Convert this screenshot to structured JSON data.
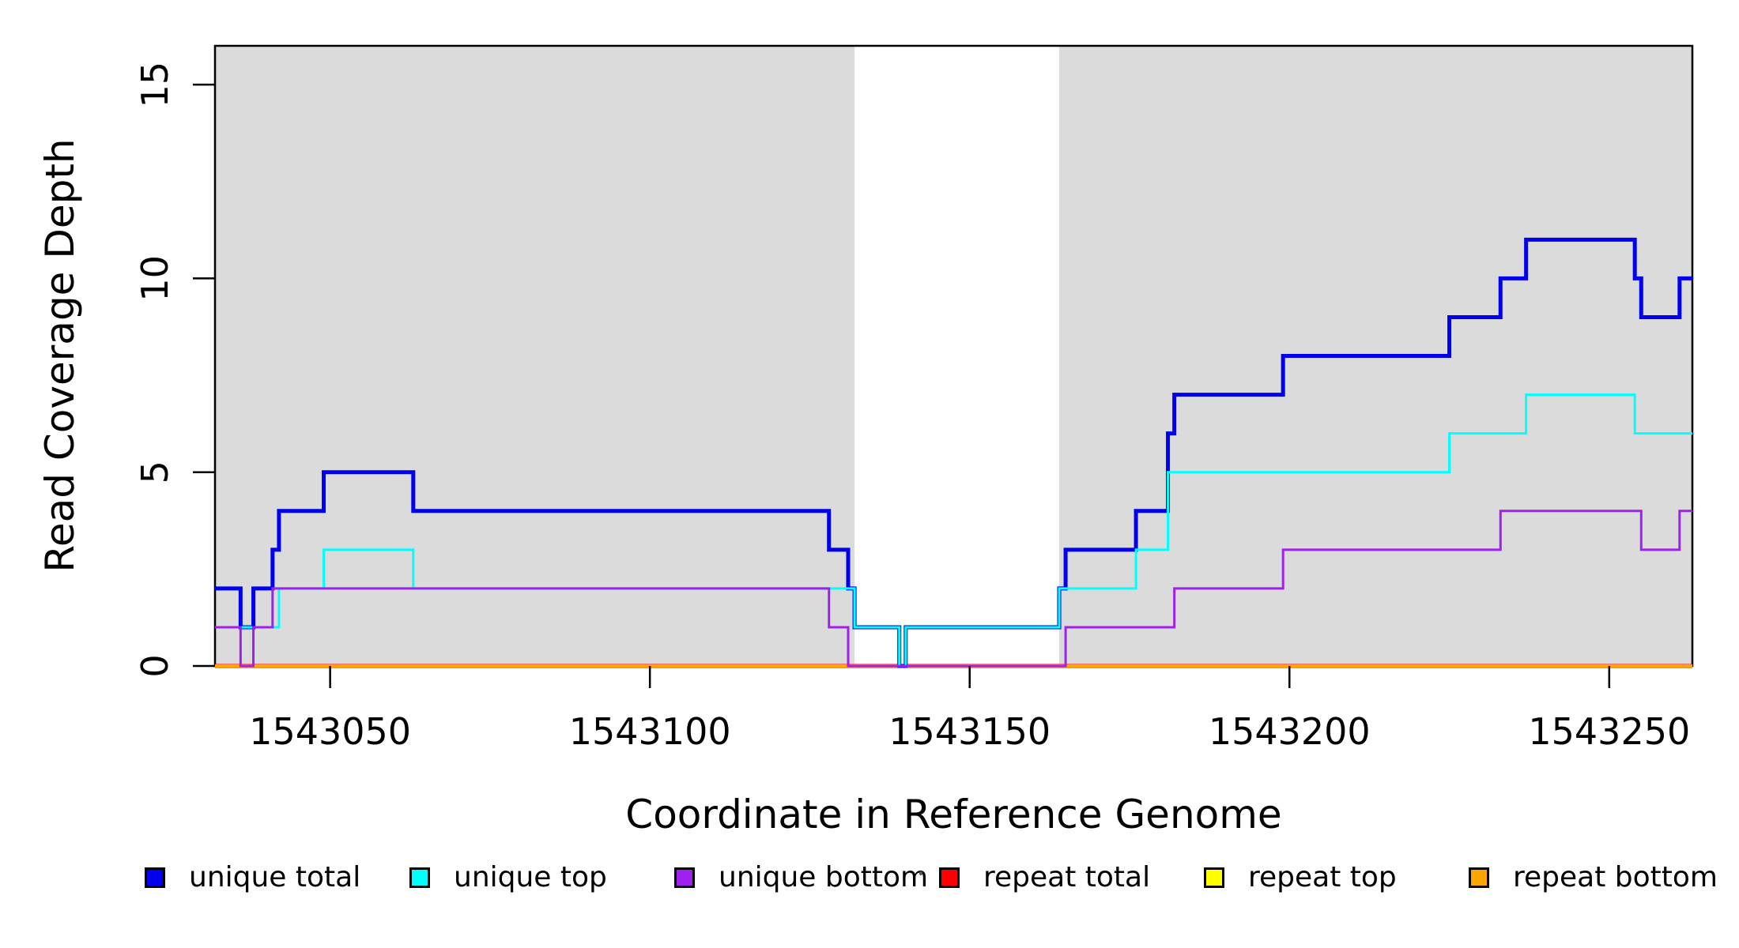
{
  "figure": {
    "background": "#FFFFFF"
  },
  "chart_data": {
    "type": "step-line",
    "title": "",
    "xlabel": "Coordinate in Reference Genome",
    "ylabel": "Read Coverage Depth",
    "xlim": [
      1543032,
      1543263
    ],
    "ylim": [
      0,
      16
    ],
    "xticks": [
      1543050,
      1543100,
      1543150,
      1543200,
      1543250
    ],
    "yticks": [
      0,
      5,
      10,
      15
    ],
    "grid": "off",
    "shade_color": "#DBDBDB",
    "shaded_regions": [
      {
        "x0": 1543032,
        "x1": 1543132
      },
      {
        "x0": 1543164,
        "x1": 1543263
      }
    ],
    "series": [
      {
        "name": "repeat total",
        "color": "#FF0000",
        "width": 5,
        "end": 1543263,
        "steps": [
          [
            1543032,
            0
          ]
        ]
      },
      {
        "name": "repeat top",
        "color": "#FFFF00",
        "width": 3,
        "end": 1543263,
        "steps": [
          [
            1543032,
            0
          ]
        ]
      },
      {
        "name": "repeat bottom",
        "color": "#FFA500",
        "width": 4,
        "end": 1543263,
        "steps": [
          [
            1543032,
            0
          ]
        ]
      },
      {
        "name": "unique total",
        "color": "#0000EE",
        "width": 5,
        "end": 1543263,
        "steps": [
          [
            1543032,
            2
          ],
          [
            1543036,
            1
          ],
          [
            1543038,
            2
          ],
          [
            1543041,
            3
          ],
          [
            1543042,
            4
          ],
          [
            1543049,
            5
          ],
          [
            1543063,
            4
          ],
          [
            1543128,
            3
          ],
          [
            1543131,
            2
          ],
          [
            1543132,
            1
          ],
          [
            1543139,
            0
          ],
          [
            1543140,
            1
          ],
          [
            1543164,
            2
          ],
          [
            1543165,
            3
          ],
          [
            1543176,
            4
          ],
          [
            1543181,
            6
          ],
          [
            1543182,
            7
          ],
          [
            1543199,
            8
          ],
          [
            1543225,
            9
          ],
          [
            1543233,
            10
          ],
          [
            1543237,
            11
          ],
          [
            1543254,
            10
          ],
          [
            1543255,
            9
          ],
          [
            1543261,
            10
          ]
        ]
      },
      {
        "name": "unique top",
        "color": "#00FFFF",
        "width": 3,
        "end": 1543263,
        "steps": [
          [
            1543032,
            1
          ],
          [
            1543042,
            2
          ],
          [
            1543049,
            3
          ],
          [
            1543063,
            2
          ],
          [
            1543132,
            1
          ],
          [
            1543139,
            0
          ],
          [
            1543140,
            1
          ],
          [
            1543164,
            2
          ],
          [
            1543176,
            3
          ],
          [
            1543181,
            5
          ],
          [
            1543225,
            6
          ],
          [
            1543237,
            7
          ],
          [
            1543254,
            6
          ]
        ]
      },
      {
        "name": "unique bottom",
        "color": "#A020F0",
        "width": 3,
        "end": 1543263,
        "steps": [
          [
            1543032,
            1
          ],
          [
            1543036,
            0
          ],
          [
            1543038,
            1
          ],
          [
            1543041,
            2
          ],
          [
            1543128,
            1
          ],
          [
            1543131,
            0
          ],
          [
            1543165,
            1
          ],
          [
            1543182,
            2
          ],
          [
            1543199,
            3
          ],
          [
            1543233,
            4
          ],
          [
            1543255,
            3
          ],
          [
            1543261,
            4
          ]
        ]
      }
    ],
    "legend_position": "bottom",
    "legend": [
      {
        "label": "unique total",
        "color": "#0000EE"
      },
      {
        "label": "unique top",
        "color": "#00FFFF"
      },
      {
        "label": "unique bottom",
        "color": "#A020F0"
      },
      {
        "label": "repeat total",
        "color": "#FF0000"
      },
      {
        "label": "repeat top",
        "color": "#FFFF00"
      },
      {
        "label": "repeat bottom",
        "color": "#FFA500"
      }
    ]
  }
}
